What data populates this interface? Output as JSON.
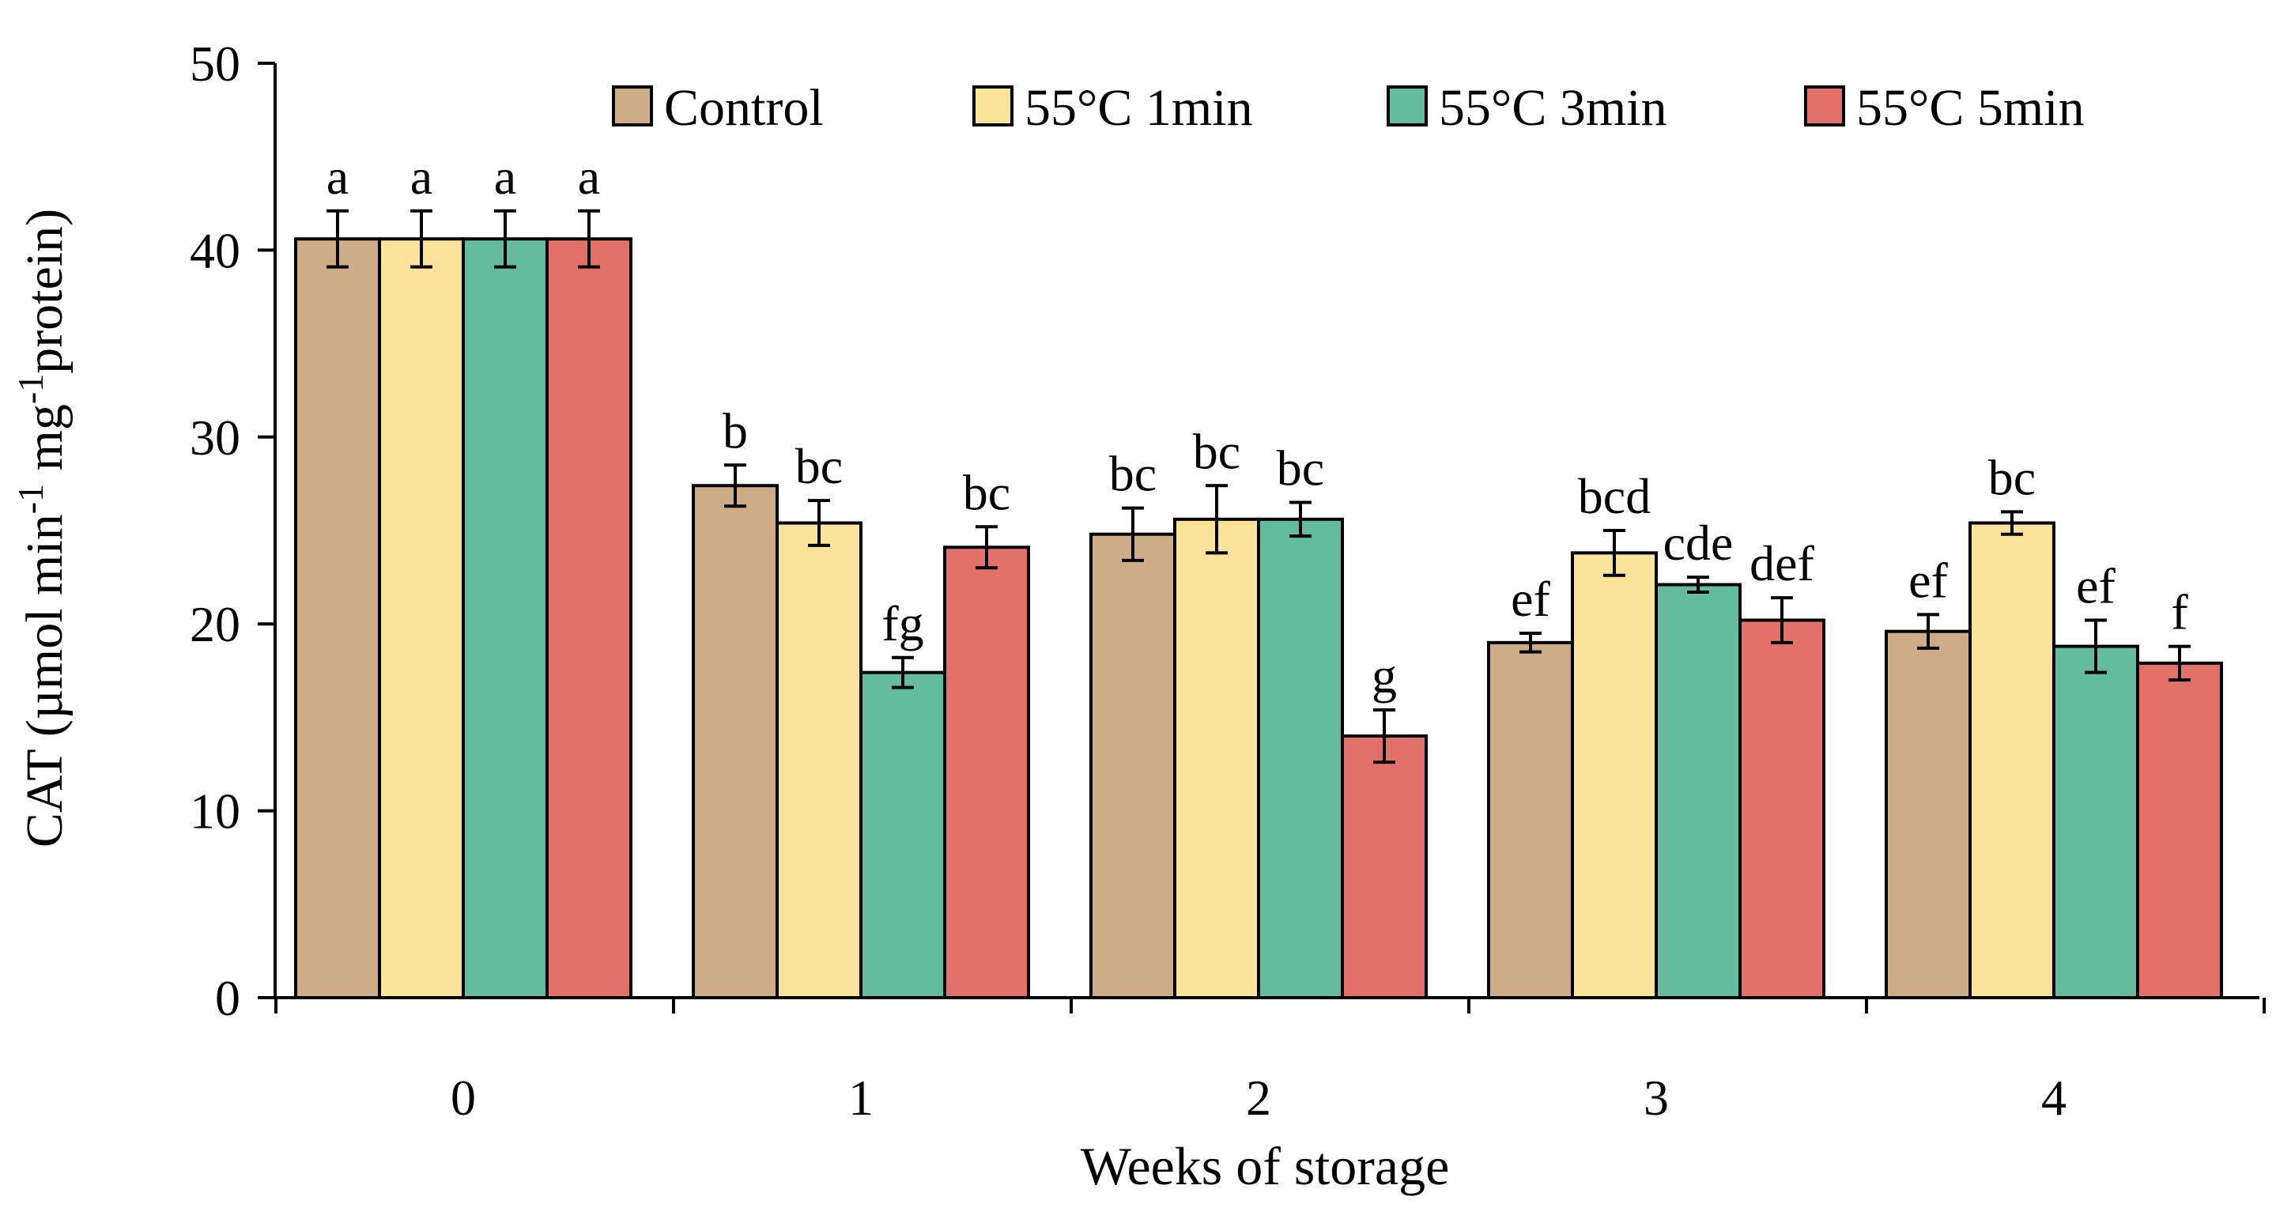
{
  "chart_data": {
    "type": "bar",
    "title": "",
    "xlabel": "Weeks of storage",
    "ylabel": {
      "prefix": "CAT (µmol min",
      "sup1": "-1",
      "middle": " mg",
      "sup2": "-1",
      "suffix": "protein)"
    },
    "ylim": [
      0,
      50
    ],
    "yticks": [
      "0",
      "10",
      "20",
      "30",
      "40",
      "50"
    ],
    "categories": [
      "0",
      "1",
      "2",
      "3",
      "4"
    ],
    "grid": false,
    "legend_position": "top",
    "series": [
      {
        "name": "Control",
        "color": "#cfac88",
        "values": [
          40.6,
          27.4,
          24.8,
          19.0,
          19.6
        ],
        "errors": [
          1.5,
          1.1,
          1.4,
          0.5,
          0.9
        ],
        "letters": [
          "a",
          "b",
          "bc",
          "ef",
          "ef"
        ]
      },
      {
        "name": "55°C 1min",
        "color": "#fbe49a",
        "values": [
          40.6,
          25.4,
          25.6,
          23.8,
          25.4
        ],
        "errors": [
          1.5,
          1.2,
          1.8,
          1.2,
          0.6
        ],
        "letters": [
          "a",
          "bc",
          "bc",
          "bcd",
          "bc"
        ]
      },
      {
        "name": "55°C 3min",
        "color": "#62bc9d",
        "values": [
          40.6,
          17.4,
          25.6,
          22.1,
          18.8
        ],
        "errors": [
          1.5,
          0.8,
          0.9,
          0.4,
          1.4
        ],
        "letters": [
          "a",
          "fg",
          "bc",
          "cde",
          "ef"
        ]
      },
      {
        "name": "55°C 5min",
        "color": "#e2716a",
        "values": [
          40.6,
          24.1,
          14.0,
          20.2,
          17.9
        ],
        "errors": [
          1.5,
          1.1,
          1.4,
          1.2,
          0.9
        ],
        "letters": [
          "a",
          "bc",
          "g",
          "def",
          "f"
        ]
      }
    ]
  }
}
